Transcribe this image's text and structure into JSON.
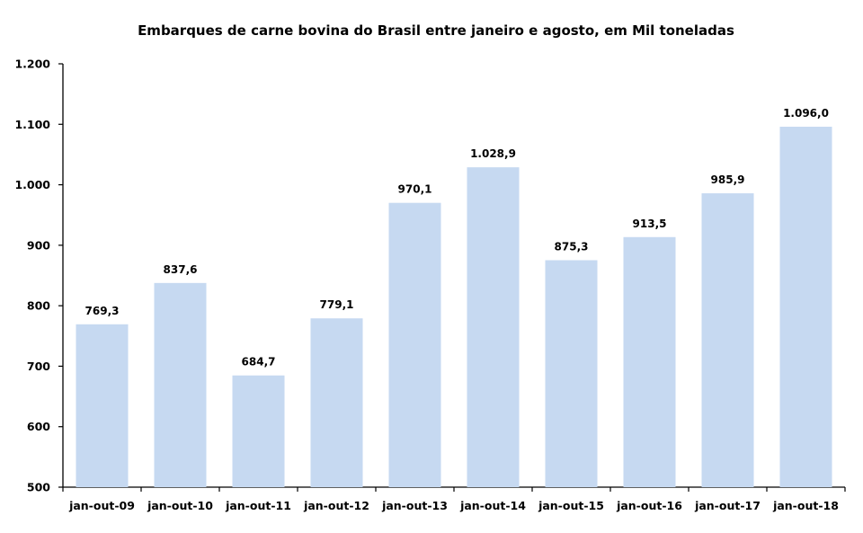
{
  "chart_data": {
    "type": "bar",
    "title": "Embarques de carne bovina do Brasil entre janeiro e agosto, em Mil toneladas",
    "xlabel": "",
    "ylabel": "",
    "ylim": [
      500,
      1200
    ],
    "yticks": [
      500,
      600,
      700,
      800,
      900,
      1000,
      1100,
      1200
    ],
    "ytick_labels": [
      "500",
      "600",
      "700",
      "800",
      "900",
      "1.000",
      "1.100",
      "1.200"
    ],
    "categories": [
      "jan-out-09",
      "jan-out-10",
      "jan-out-11",
      "jan-out-12",
      "jan-out-13",
      "jan-out-14",
      "jan-out-15",
      "jan-out-16",
      "jan-out-17",
      "jan-out-18"
    ],
    "values": [
      769.3,
      837.6,
      684.7,
      779.1,
      970.1,
      1028.9,
      875.3,
      913.5,
      985.9,
      1096.0
    ],
    "data_labels": [
      "769,3",
      "837,6",
      "684,7",
      "779,1",
      "970,1",
      "1.028,9",
      "875,3",
      "913,5",
      "985,9",
      "1.096,0"
    ],
    "bar_color": "#c6d9f1",
    "grid": false,
    "legend": "none"
  }
}
